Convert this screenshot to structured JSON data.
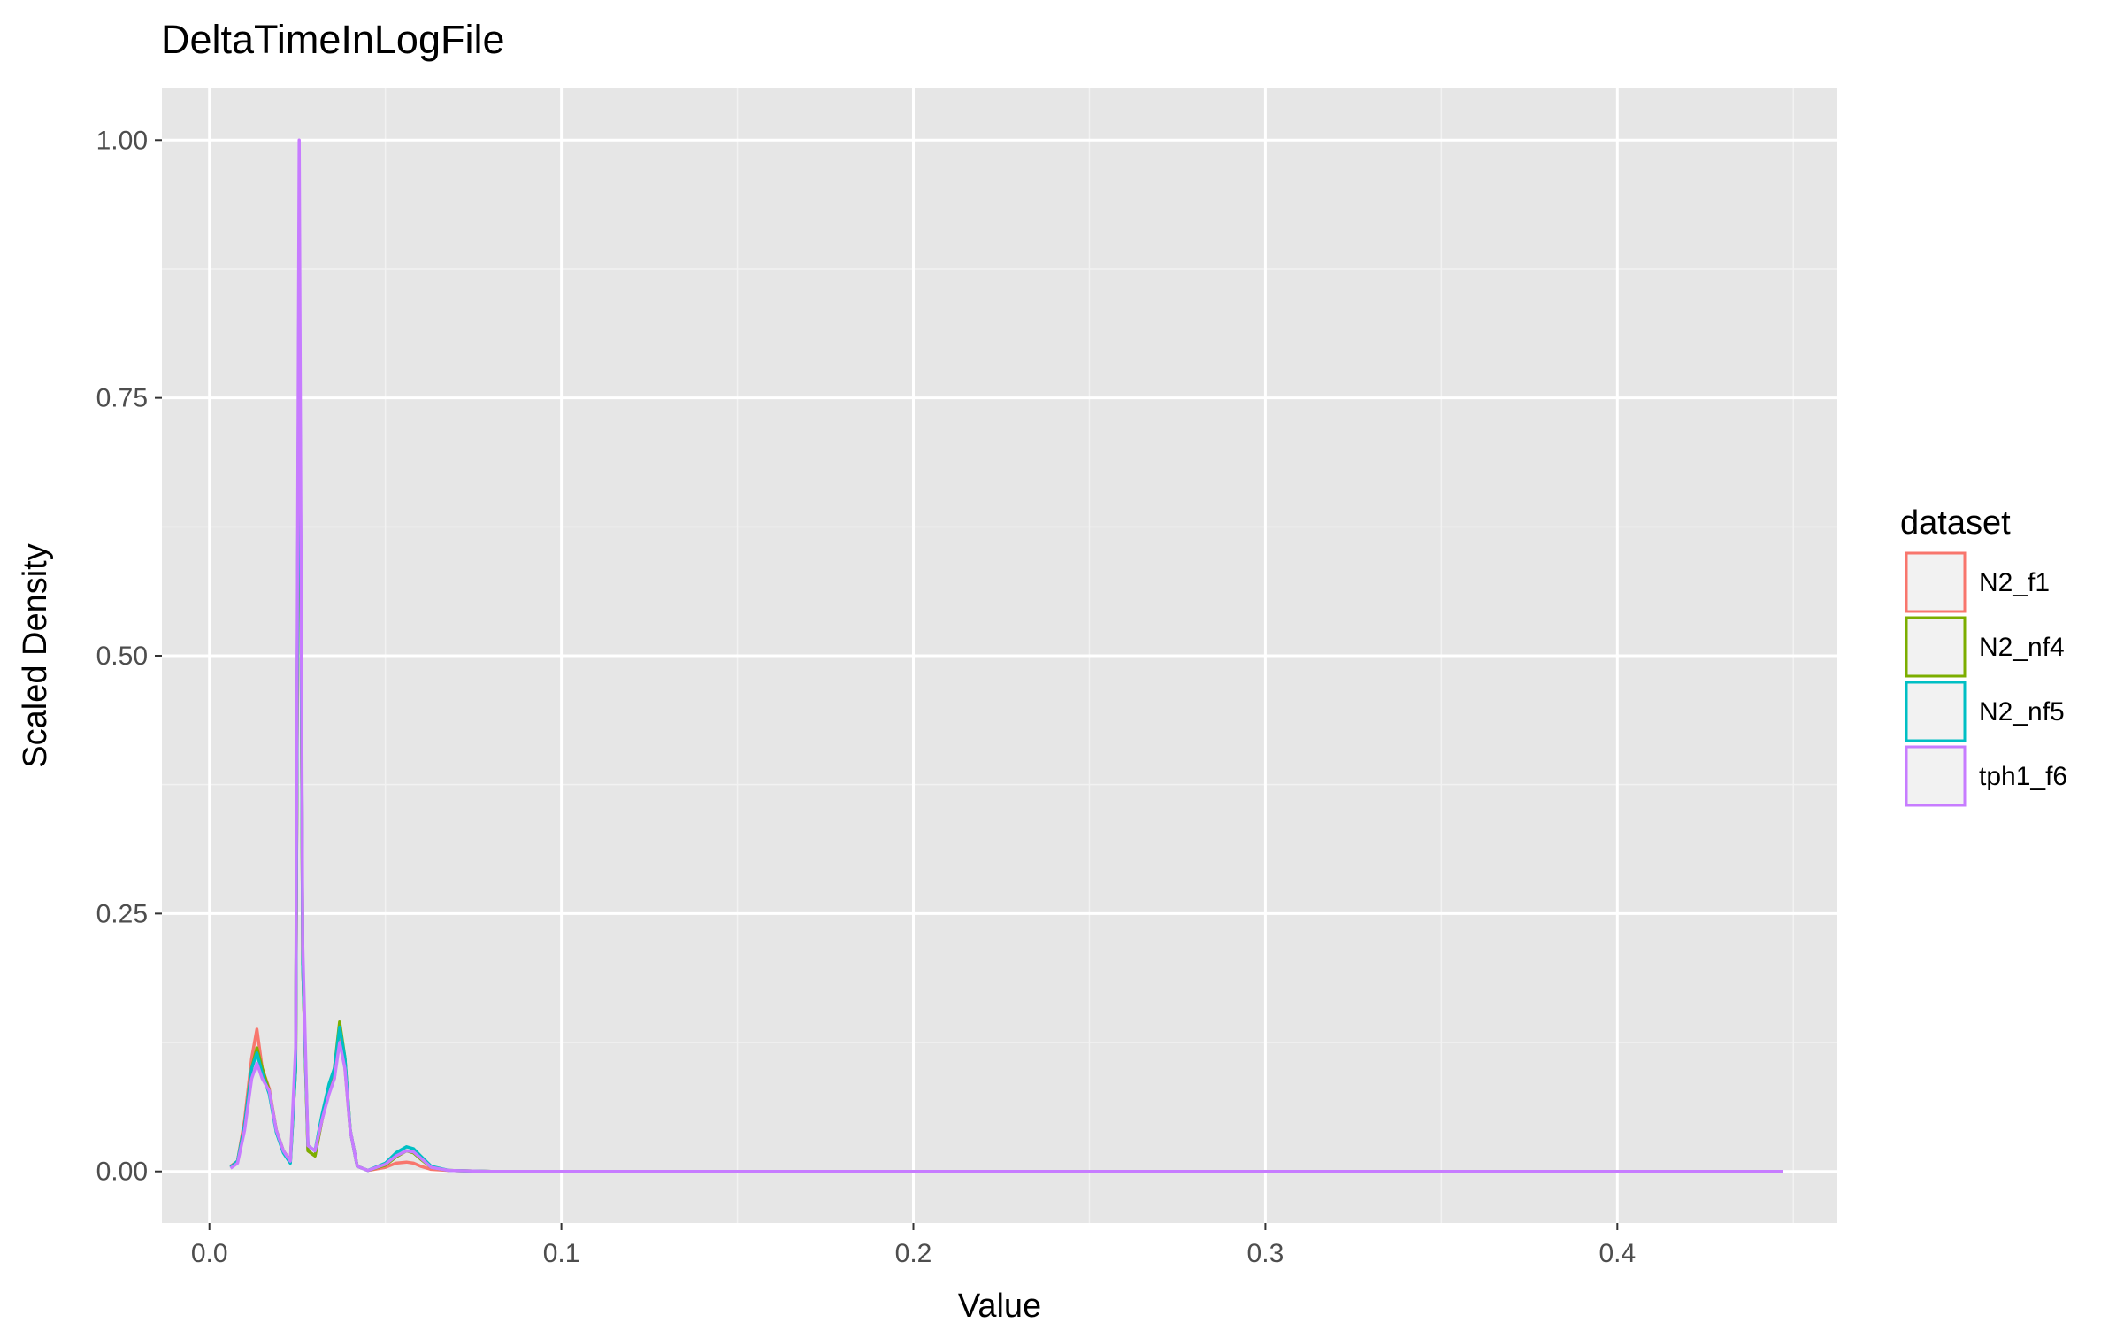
{
  "chart_data": {
    "type": "line",
    "title": "DeltaTimeInLogFile",
    "xlabel": "Value",
    "ylabel": "Scaled Density",
    "xlim": [
      -0.0135,
      0.4625
    ],
    "ylim": [
      -0.05,
      1.05
    ],
    "x_ticks": [
      0.0,
      0.1,
      0.2,
      0.3,
      0.4
    ],
    "x_tick_labels": [
      "0.0",
      "0.1",
      "0.2",
      "0.3",
      "0.4"
    ],
    "y_ticks": [
      0.0,
      0.25,
      0.5,
      0.75,
      1.0
    ],
    "y_tick_labels": [
      "0.00",
      "0.25",
      "0.50",
      "0.75",
      "1.00"
    ],
    "grid": true,
    "legend": {
      "title": "dataset",
      "position": "right"
    },
    "series": [
      {
        "name": "N2_f1",
        "color": "#F8766D",
        "x": [
          0.006,
          0.008,
          0.01,
          0.012,
          0.0135,
          0.015,
          0.017,
          0.019,
          0.021,
          0.023,
          0.0245,
          0.0255,
          0.0265,
          0.028,
          0.03,
          0.032,
          0.034,
          0.0355,
          0.037,
          0.0385,
          0.04,
          0.042,
          0.045,
          0.05,
          0.053,
          0.056,
          0.058,
          0.06,
          0.063,
          0.068,
          0.08,
          0.2,
          0.3,
          0.4,
          0.447
        ],
        "y": [
          0.005,
          0.01,
          0.05,
          0.11,
          0.138,
          0.1,
          0.08,
          0.04,
          0.02,
          0.01,
          0.1,
          0.9,
          0.2,
          0.02,
          0.015,
          0.05,
          0.08,
          0.09,
          0.14,
          0.1,
          0.04,
          0.005,
          0.001,
          0.004,
          0.008,
          0.009,
          0.008,
          0.005,
          0.002,
          0.001,
          0.0,
          0.0,
          0.0,
          0.0,
          0.0
        ]
      },
      {
        "name": "N2_nf4",
        "color": "#7CAE00",
        "x": [
          0.006,
          0.008,
          0.01,
          0.012,
          0.0135,
          0.015,
          0.017,
          0.019,
          0.021,
          0.023,
          0.0245,
          0.0255,
          0.0265,
          0.028,
          0.03,
          0.032,
          0.034,
          0.0355,
          0.037,
          0.0385,
          0.04,
          0.042,
          0.045,
          0.05,
          0.053,
          0.056,
          0.058,
          0.06,
          0.063,
          0.068,
          0.08,
          0.2,
          0.3,
          0.4,
          0.447
        ],
        "y": [
          0.004,
          0.01,
          0.045,
          0.1,
          0.12,
          0.1,
          0.078,
          0.04,
          0.02,
          0.01,
          0.1,
          0.88,
          0.2,
          0.02,
          0.015,
          0.05,
          0.08,
          0.1,
          0.145,
          0.11,
          0.04,
          0.005,
          0.001,
          0.006,
          0.014,
          0.02,
          0.018,
          0.012,
          0.004,
          0.001,
          0.0,
          0.0,
          0.0,
          0.0,
          0.0
        ]
      },
      {
        "name": "N2_nf5",
        "color": "#00BFC4",
        "x": [
          0.006,
          0.008,
          0.01,
          0.012,
          0.0135,
          0.015,
          0.017,
          0.019,
          0.021,
          0.023,
          0.0245,
          0.0255,
          0.0265,
          0.028,
          0.03,
          0.032,
          0.034,
          0.0355,
          0.037,
          0.0385,
          0.04,
          0.042,
          0.045,
          0.05,
          0.053,
          0.056,
          0.058,
          0.06,
          0.063,
          0.068,
          0.08,
          0.2,
          0.3,
          0.4,
          0.447
        ],
        "y": [
          0.004,
          0.01,
          0.045,
          0.1,
          0.115,
          0.095,
          0.075,
          0.038,
          0.018,
          0.008,
          0.1,
          0.92,
          0.2,
          0.025,
          0.02,
          0.055,
          0.085,
          0.1,
          0.14,
          0.11,
          0.04,
          0.005,
          0.001,
          0.008,
          0.018,
          0.024,
          0.022,
          0.015,
          0.005,
          0.001,
          0.0,
          0.0,
          0.0,
          0.0,
          0.0
        ]
      },
      {
        "name": "tph1_f6",
        "color": "#C77CFF",
        "x": [
          0.006,
          0.008,
          0.01,
          0.012,
          0.0135,
          0.015,
          0.017,
          0.019,
          0.021,
          0.023,
          0.0245,
          0.0255,
          0.0265,
          0.028,
          0.03,
          0.032,
          0.034,
          0.0355,
          0.037,
          0.0385,
          0.04,
          0.042,
          0.045,
          0.05,
          0.053,
          0.056,
          0.058,
          0.06,
          0.063,
          0.068,
          0.08,
          0.2,
          0.3,
          0.4,
          0.447
        ],
        "y": [
          0.003,
          0.008,
          0.04,
          0.09,
          0.105,
          0.09,
          0.078,
          0.04,
          0.02,
          0.01,
          0.12,
          1.0,
          0.22,
          0.025,
          0.02,
          0.05,
          0.075,
          0.09,
          0.125,
          0.1,
          0.04,
          0.005,
          0.001,
          0.007,
          0.015,
          0.02,
          0.019,
          0.013,
          0.004,
          0.001,
          0.0,
          0.0,
          0.0,
          0.0,
          0.0
        ]
      }
    ]
  }
}
